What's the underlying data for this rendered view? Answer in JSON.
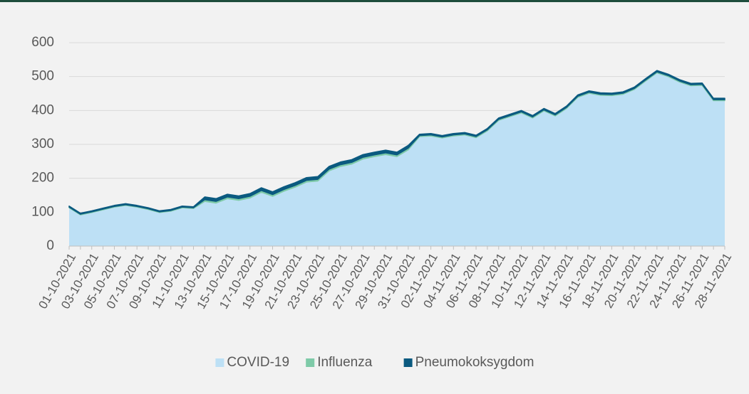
{
  "chart_data": {
    "type": "stacked_area",
    "categories": [
      "01-10-2021",
      null,
      "03-10-2021",
      null,
      "05-10-2021",
      null,
      "07-10-2021",
      null,
      "09-10-2021",
      null,
      "11-10-2021",
      null,
      "13-10-2021",
      null,
      "15-10-2021",
      null,
      "17-10-2021",
      null,
      "19-10-2021",
      null,
      "21-10-2021",
      null,
      "23-10-2021",
      null,
      "25-10-2021",
      null,
      "27-10-2021",
      null,
      "29-10-2021",
      null,
      "31-10-2021",
      null,
      "02-11-2021",
      null,
      "04-11-2021",
      null,
      "06-11-2021",
      null,
      "08-11-2021",
      null,
      "10-11-2021",
      null,
      "12-11-2021",
      null,
      "14-11-2021",
      null,
      "16-11-2021",
      null,
      "18-11-2021",
      null,
      "20-11-2021",
      null,
      "22-11-2021",
      null,
      "24-11-2021",
      null,
      "26-11-2021",
      null,
      "28-11-2021"
    ],
    "series": [
      {
        "name": "COVID-19",
        "color": "#bde0f5",
        "values": [
          113,
          92,
          99,
          107,
          115,
          120,
          115,
          108,
          99,
          103,
          113,
          111,
          132,
          127,
          140,
          135,
          142,
          159,
          147,
          162,
          174,
          189,
          192,
          222,
          235,
          242,
          257,
          264,
          270,
          264,
          284,
          323,
          325,
          319,
          325,
          328,
          320,
          340,
          371,
          382,
          393,
          378,
          399,
          384,
          406,
          439,
          451,
          445,
          444,
          448,
          462,
          487,
          511,
          500,
          484,
          473,
          474,
          429,
          429
        ]
      },
      {
        "name": "Influenza",
        "color": "#7ecaa8",
        "values": [
          2,
          2,
          2,
          2,
          2,
          2,
          2,
          2,
          2,
          2,
          2,
          2,
          5,
          5,
          5,
          5,
          5,
          5,
          5,
          5,
          5,
          5,
          5,
          5,
          5,
          5,
          5,
          5,
          5,
          5,
          5,
          3,
          3,
          3,
          3,
          3,
          3,
          3,
          3,
          3,
          3,
          3,
          3,
          3,
          3,
          3,
          3,
          3,
          3,
          3,
          3,
          3,
          3,
          3,
          3,
          3,
          3,
          3,
          3
        ]
      },
      {
        "name": "Pneumokoksygdom",
        "color": "#0b5a80",
        "values": [
          3,
          3,
          3,
          3,
          3,
          3,
          3,
          3,
          3,
          3,
          3,
          3,
          8,
          8,
          8,
          8,
          8,
          8,
          8,
          8,
          8,
          8,
          8,
          8,
          8,
          8,
          8,
          8,
          8,
          8,
          8,
          4,
          4,
          4,
          4,
          4,
          4,
          4,
          4,
          4,
          4,
          4,
          4,
          4,
          4,
          4,
          4,
          4,
          4,
          4,
          4,
          4,
          4,
          4,
          4,
          4,
          4,
          4,
          4
        ]
      }
    ],
    "ylim": [
      0,
      600
    ],
    "yticks": [
      0,
      100,
      200,
      300,
      400,
      500,
      600
    ],
    "grid": true,
    "legend": "bottom"
  }
}
